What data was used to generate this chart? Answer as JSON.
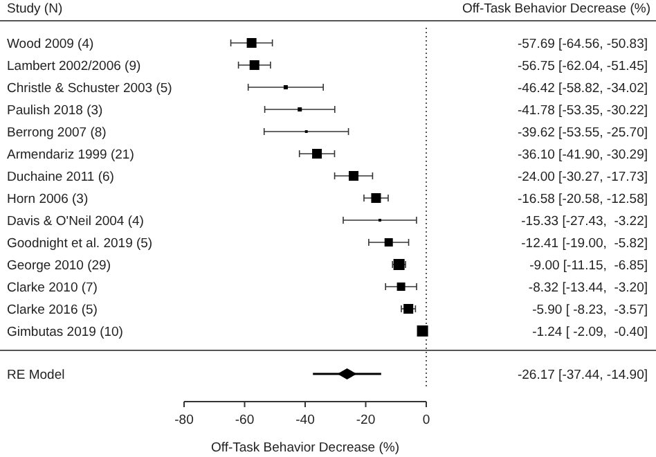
{
  "chart_data": {
    "type": "scatter",
    "orientation": "horizontal",
    "xlabel": "Off-Task Behavior Decrease (%)",
    "annotations": [
      "Study (N)",
      "Off-Task Behavior Decrease (%)",
      "-26.17 [-37.44, -14.90]"
    ],
    "categories": [
      "Wood 2009 (4)",
      "Lambert 2002/2006 (9)",
      "Christle & Schuster 2003 (5)",
      "Paulish 2018 (3)",
      "Berrong 2007 (8)",
      "Armendariz 1999 (21)",
      "Duchaine 2011 (6)",
      "Horn 2006 (3)",
      "Davis & O'Neil 2004 (4)",
      "Goodnight et al. 2019 (5)",
      "George 2010 (29)",
      "Clarke 2010 (7)",
      "Clarke 2016 (5)",
      "Gimbutas 2019 (10)",
      "RE Model"
    ],
    "xlim": [
      -80,
      0
    ],
    "xticks": [
      -80,
      -60,
      -40,
      -20,
      0
    ],
    "ref_lines": [
      {
        "axis": "x",
        "value": 0,
        "line_style": "dotted",
        "color": "#555555"
      }
    ],
    "series": [
      {
        "type": "bubble",
        "marker": "square",
        "color": "#000000",
        "values": [
          -57.69,
          -56.75,
          -46.42,
          -41.78,
          -39.62,
          -36.1,
          -24.0,
          -16.58,
          -15.33,
          -12.41,
          -9.0,
          -8.32,
          -5.9,
          -1.24,
          null
        ],
        "errors": [
          [
            -64.56,
            -50.83
          ],
          [
            -62.04,
            -51.45
          ],
          [
            -58.82,
            -34.02
          ],
          [
            -53.35,
            -30.22
          ],
          [
            -53.55,
            -25.7
          ],
          [
            -41.9,
            -30.29
          ],
          [
            -30.27,
            -17.73
          ],
          [
            -20.58,
            -12.58
          ],
          [
            -27.43,
            -3.22
          ],
          [
            -19.0,
            -5.82
          ],
          [
            -11.15,
            -6.85
          ],
          [
            -13.44,
            -3.2
          ],
          [
            -8.23,
            -3.57
          ],
          [
            -2.09,
            -0.4
          ],
          null
        ],
        "sizes": [
          0.77,
          0.77,
          0.14,
          0.14,
          0.06,
          0.77,
          0.77,
          0.77,
          0.06,
          0.56,
          1,
          0.56,
          0.77,
          1,
          null
        ],
        "value_labels": [
          "-57.69 [-64.56, -50.83]",
          "-56.75 [-62.04, -51.45]",
          "-46.42 [-58.82, -34.02]",
          "-41.78 [-53.35, -30.22]",
          "-39.62 [-53.55, -25.70]",
          "-36.10 [-41.90, -30.29]",
          "-24.00 [-30.27, -17.73]",
          "-16.58 [-20.58, -12.58]",
          "-15.33 [-27.43,  -3.22]",
          "-12.41 [-19.00,  -5.82]",
          "-9.00 [-11.15,  -6.85]",
          "-8.32 [-13.44,  -3.20]",
          "-5.90 [ -8.23,  -3.57]",
          "-1.24 [ -2.09,  -0.40]",
          null
        ]
      },
      {
        "type": "scatter",
        "marker": "diamond",
        "color": "#000000",
        "values": [
          null,
          null,
          null,
          null,
          null,
          null,
          null,
          null,
          null,
          null,
          null,
          null,
          null,
          null,
          -26.17
        ],
        "errors": [
          null,
          null,
          null,
          null,
          null,
          null,
          null,
          null,
          null,
          null,
          null,
          null,
          null,
          null,
          [
            -37.44,
            -14.9
          ]
        ]
      }
    ]
  }
}
